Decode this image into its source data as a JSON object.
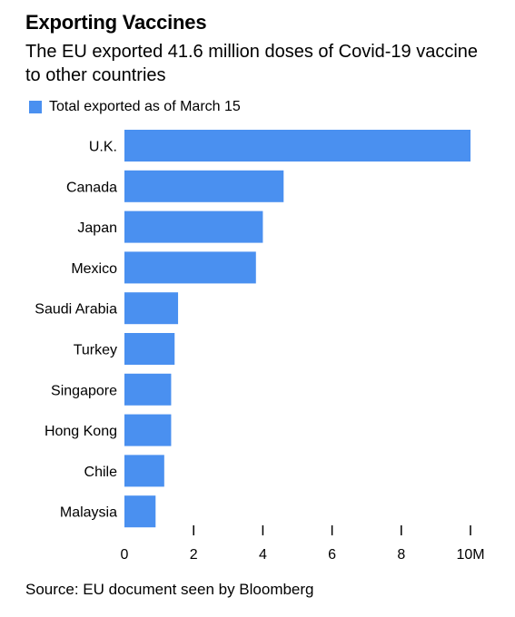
{
  "chart_data": {
    "type": "bar",
    "orientation": "horizontal",
    "title": "Exporting Vaccines",
    "subtitle": "The EU exported 41.6 million doses of Covid-19 vaccine to other countries",
    "legend": {
      "label": "Total exported as of March 15",
      "placement": "top-left"
    },
    "categories": [
      "U.K.",
      "Canada",
      "Japan",
      "Mexico",
      "Saudi Arabia",
      "Turkey",
      "Singapore",
      "Hong Kong",
      "Chile",
      "Malaysia"
    ],
    "series": [
      {
        "name": "Total exported as of March 15",
        "values": [
          10.0,
          4.6,
          4.0,
          3.8,
          1.55,
          1.45,
          1.35,
          1.35,
          1.15,
          0.9
        ]
      }
    ],
    "xlim": [
      0,
      10
    ],
    "xticks": [
      0,
      2,
      4,
      6,
      8,
      10
    ],
    "xtick_labels": [
      "0",
      "2",
      "4",
      "6",
      "8",
      "10M"
    ],
    "grid": false,
    "bar_color": "#4a90f0",
    "source": "Source: EU document seen by Bloomberg"
  }
}
